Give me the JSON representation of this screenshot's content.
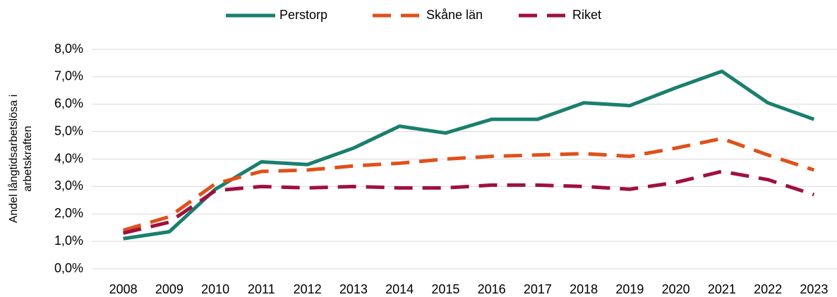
{
  "chart_data": {
    "type": "line",
    "ylabel": [
      "Andel långtidsarbetslösa i",
      "arbetskraften"
    ],
    "categories": [
      "2008",
      "2009",
      "2010",
      "2011",
      "2012",
      "2013",
      "2014",
      "2015",
      "2016",
      "2017",
      "2018",
      "2019",
      "2020",
      "2021",
      "2022",
      "2023"
    ],
    "series": [
      {
        "name": "Perstorp",
        "color": "#1a7f6e",
        "style": "solid",
        "values": [
          1.1,
          1.35,
          2.9,
          3.9,
          3.8,
          4.4,
          5.2,
          4.95,
          5.45,
          5.45,
          6.05,
          5.95,
          6.6,
          7.2,
          6.05,
          5.45
        ]
      },
      {
        "name": "Skåne län",
        "color": "#e0501a",
        "style": "dashed",
        "values": [
          1.4,
          1.9,
          3.1,
          3.55,
          3.6,
          3.75,
          3.85,
          4.0,
          4.1,
          4.15,
          4.2,
          4.1,
          4.4,
          4.75,
          4.15,
          3.6
        ]
      },
      {
        "name": "Riket",
        "color": "#a0103f",
        "style": "dashed",
        "values": [
          1.3,
          1.7,
          2.85,
          3.0,
          2.95,
          3.0,
          2.95,
          2.95,
          3.05,
          3.05,
          3.0,
          2.9,
          3.15,
          3.55,
          3.25,
          2.7
        ]
      }
    ],
    "ylim": [
      0,
      8
    ],
    "yticks": [
      {
        "value": 0,
        "label": "0,0%"
      },
      {
        "value": 1,
        "label": "1,0%"
      },
      {
        "value": 2,
        "label": "2,0%"
      },
      {
        "value": 3,
        "label": "3,0%"
      },
      {
        "value": 4,
        "label": "4,0%"
      },
      {
        "value": 5,
        "label": "5,0%"
      },
      {
        "value": 6,
        "label": "6,0%"
      },
      {
        "value": 7,
        "label": "7,0%"
      },
      {
        "value": 8,
        "label": "8,0%"
      }
    ],
    "grid": true,
    "legend": "top"
  }
}
